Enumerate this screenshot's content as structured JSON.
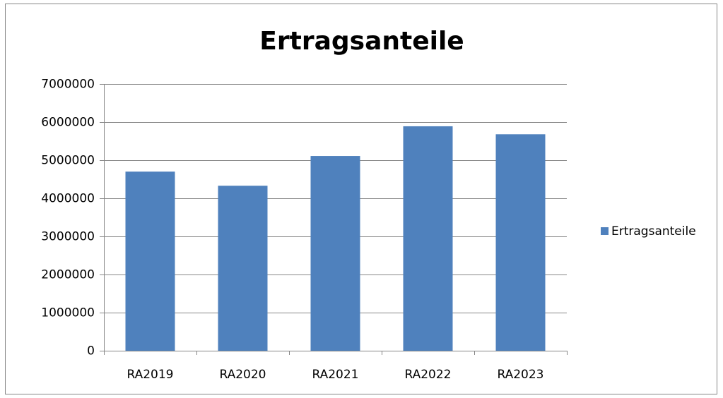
{
  "chart_data": {
    "type": "bar",
    "title": "Ertragsanteile",
    "categories": [
      "RA2019",
      "RA2020",
      "RA2021",
      "RA2022",
      "RA2023"
    ],
    "series": [
      {
        "name": "Ertragsanteile",
        "color": "#4f81bd",
        "values": [
          4700000,
          4330000,
          5110000,
          5890000,
          5680000
        ]
      }
    ],
    "ylim": [
      0,
      7000000
    ],
    "yticks": [
      0,
      1000000,
      2000000,
      3000000,
      4000000,
      5000000,
      6000000,
      7000000
    ],
    "grid": true,
    "legend": "right"
  }
}
